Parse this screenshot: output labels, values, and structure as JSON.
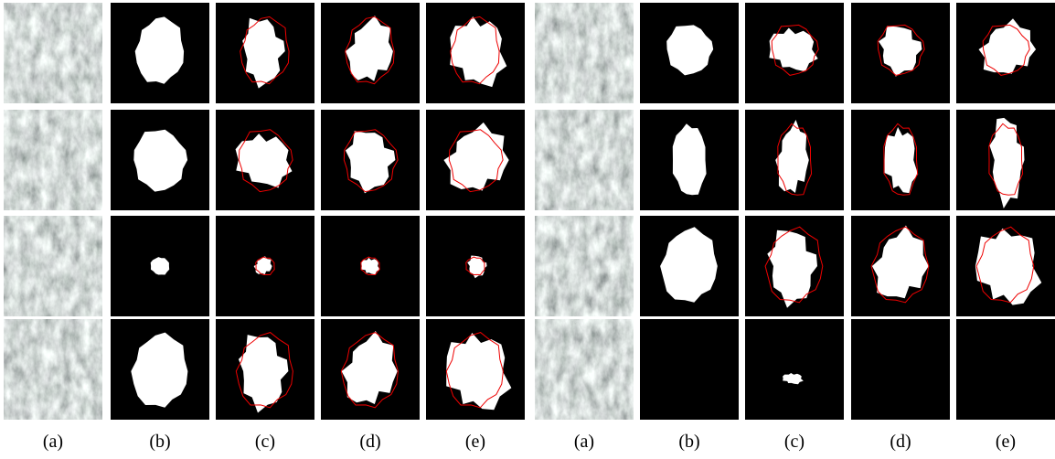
{
  "left_group": {
    "column_labels": [
      "(a)",
      "(b)",
      "(c)",
      "(d)",
      "(e)"
    ]
  },
  "right_group": {
    "column_labels": [
      "(a)",
      "(b)",
      "(c)",
      "(d)",
      "(e)"
    ]
  }
}
